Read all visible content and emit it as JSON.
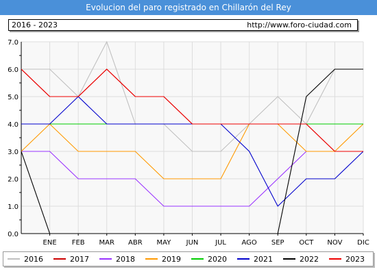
{
  "header": {
    "title": "Evolucion del paro registrado en Chillarón del Rey",
    "period": "2016 - 2023",
    "url": "http://www.foro-ciudad.com"
  },
  "chart_data": {
    "type": "line",
    "title": "Evolucion del paro registrado en Chillarón del Rey",
    "categories": [
      "DIC",
      "ENE",
      "FEB",
      "MAR",
      "ABR",
      "MAY",
      "JUN",
      "JUL",
      "AGO",
      "SEP",
      "OCT",
      "NOV",
      "DIC"
    ],
    "x_tick_labels": [
      "ENE",
      "FEB",
      "MAR",
      "ABR",
      "MAY",
      "JUN",
      "JUL",
      "AGO",
      "SEP",
      "OCT",
      "NOV",
      "DIC"
    ],
    "ylim": [
      0,
      7
    ],
    "y_ticks": [
      "0.0",
      "1.0",
      "2.0",
      "3.0",
      "4.0",
      "5.0",
      "6.0",
      "7.0"
    ],
    "grid": true,
    "legend_position": "bottom",
    "series": [
      {
        "name": "2016",
        "color": "#c0c0c0",
        "values": [
          6,
          6,
          5,
          7,
          4,
          4,
          3,
          3,
          4,
          5,
          4,
          6,
          6
        ]
      },
      {
        "name": "2017",
        "color": "#cc0000",
        "values": [
          6,
          5,
          5,
          6,
          5,
          5,
          4,
          4,
          4,
          4,
          4,
          3,
          3
        ]
      },
      {
        "name": "2018",
        "color": "#9933ff",
        "values": [
          3,
          3,
          2,
          2,
          2,
          1,
          1,
          1,
          1,
          2,
          3,
          3,
          3
        ]
      },
      {
        "name": "2019",
        "color": "#ff9900",
        "values": [
          3,
          4,
          3,
          3,
          3,
          2,
          2,
          2,
          4,
          4,
          3,
          3,
          4
        ]
      },
      {
        "name": "2020",
        "color": "#00cc00",
        "values": [
          4,
          4,
          4,
          4,
          4,
          4,
          4,
          4,
          4,
          4,
          4,
          4,
          4
        ]
      },
      {
        "name": "2021",
        "color": "#0000cc",
        "values": [
          4,
          4,
          5,
          4,
          4,
          4,
          4,
          4,
          3,
          1,
          2,
          2,
          3
        ]
      },
      {
        "name": "2022",
        "color": "#000000",
        "values": [
          3,
          0,
          0,
          0,
          0,
          0,
          0,
          0,
          0,
          0,
          5,
          6,
          6
        ]
      },
      {
        "name": "2023",
        "color": "#ee0000",
        "values": [
          6,
          5,
          5,
          6,
          5,
          5,
          4,
          4,
          4,
          4,
          4,
          3,
          3
        ]
      }
    ]
  }
}
